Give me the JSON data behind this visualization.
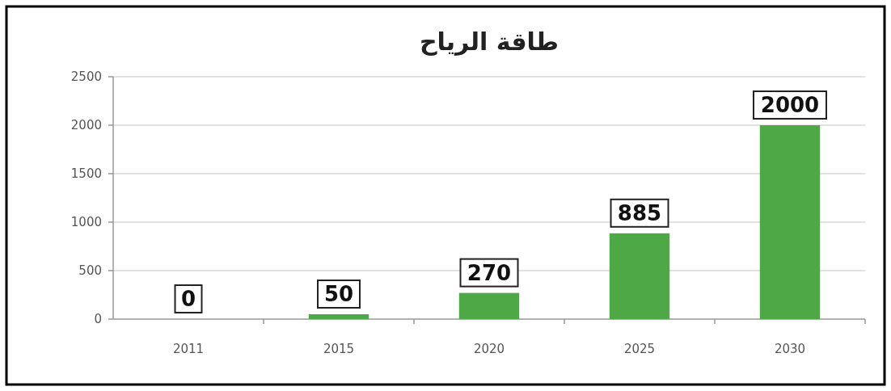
{
  "chart_data": {
    "type": "bar",
    "title": "طاقة الرياح",
    "categories": [
      "2011",
      "2015",
      "2020",
      "2025",
      "2030"
    ],
    "values": [
      0,
      50,
      270,
      885,
      2000
    ],
    "color": "#4ea845",
    "ylim": [
      0,
      2500
    ],
    "yticks": [
      0,
      500,
      1000,
      1500,
      2000,
      2500
    ],
    "grid": "y",
    "data_labels": true
  }
}
